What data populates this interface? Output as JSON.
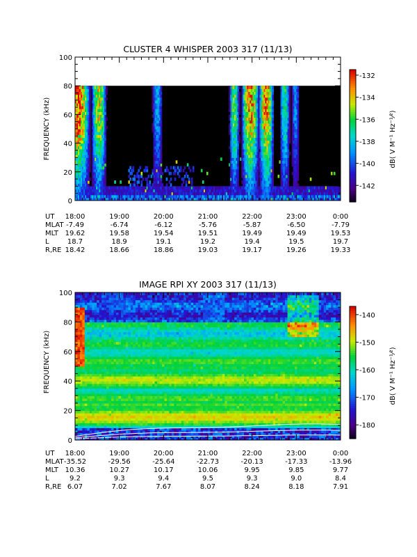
{
  "chart_data": [
    {
      "type": "heatmap",
      "title": "CLUSTER 4 WHISPER 2003 317 (11/13)",
      "ylabel": "FREQUENCY (kHz)",
      "xlabel": "",
      "ylim": [
        0,
        100
      ],
      "y_ticks": [
        "0",
        "20",
        "40",
        "60",
        "80",
        "100"
      ],
      "colorbar": {
        "label": "dB( V M⁻¹ Hz⁻¹⁄²)",
        "range": [
          -143.5,
          -131.5
        ],
        "ticks": [
          "-132",
          "-134",
          "-136",
          "-138",
          "-140",
          "-142"
        ]
      },
      "data_max_frequency": 80,
      "ephemeris": {
        "labels": [
          "UT",
          "MLAT",
          "MLT",
          "L",
          "R,RE"
        ],
        "columns": [
          [
            "18:00",
            "-7.49",
            "19.62",
            "18.7",
            "18.42"
          ],
          [
            "19:00",
            "-6.74",
            "19.58",
            "18.9",
            "18.66"
          ],
          [
            "20:00",
            "-6.12",
            "19.54",
            "19.1",
            "18.86"
          ],
          [
            "21:00",
            "-5.76",
            "19.51",
            "19.2",
            "19.03"
          ],
          [
            "22:00",
            "-5.87",
            "19.49",
            "19.4",
            "19.17"
          ],
          [
            "23:00",
            "-6.50",
            "19.49",
            "19.5",
            "19.26"
          ],
          [
            "0:00",
            "-7.79",
            "19.53",
            "19.7",
            "19.33"
          ]
        ]
      }
    },
    {
      "type": "heatmap",
      "title": "IMAGE RPI XY 2003 317 (11/13)",
      "ylabel": "FREQUENCY (kHz)",
      "xlabel": "",
      "ylim": [
        0,
        100
      ],
      "y_ticks": [
        "0",
        "20",
        "40",
        "60",
        "80",
        "100"
      ],
      "colorbar": {
        "label": "dB( V M⁻¹ Hz⁻¹⁄²)",
        "range": [
          -185,
          -137
        ],
        "ticks": [
          "-140",
          "-150",
          "-160",
          "-170",
          "-180"
        ]
      },
      "ephemeris": {
        "labels": [
          "UT",
          "MLAT",
          "MLT",
          "L",
          "R,RE"
        ],
        "columns": [
          [
            "18:00",
            "-35.52",
            "10.36",
            "9.2",
            "6.07"
          ],
          [
            "19:00",
            "-29.56",
            "10.27",
            "9.3",
            "7.02"
          ],
          [
            "20:00",
            "-25.64",
            "10.17",
            "9.4",
            "7.67"
          ],
          [
            "21:00",
            "-22.73",
            "10.06",
            "9.5",
            "8.07"
          ],
          [
            "22:00",
            "-20.13",
            "9.95",
            "9.3",
            "8.24"
          ],
          [
            "23:00",
            "-17.33",
            "9.85",
            "9.0",
            "8.18"
          ],
          [
            "0:00",
            "-13.96",
            "9.77",
            "8.4",
            "7.91"
          ]
        ]
      }
    }
  ]
}
